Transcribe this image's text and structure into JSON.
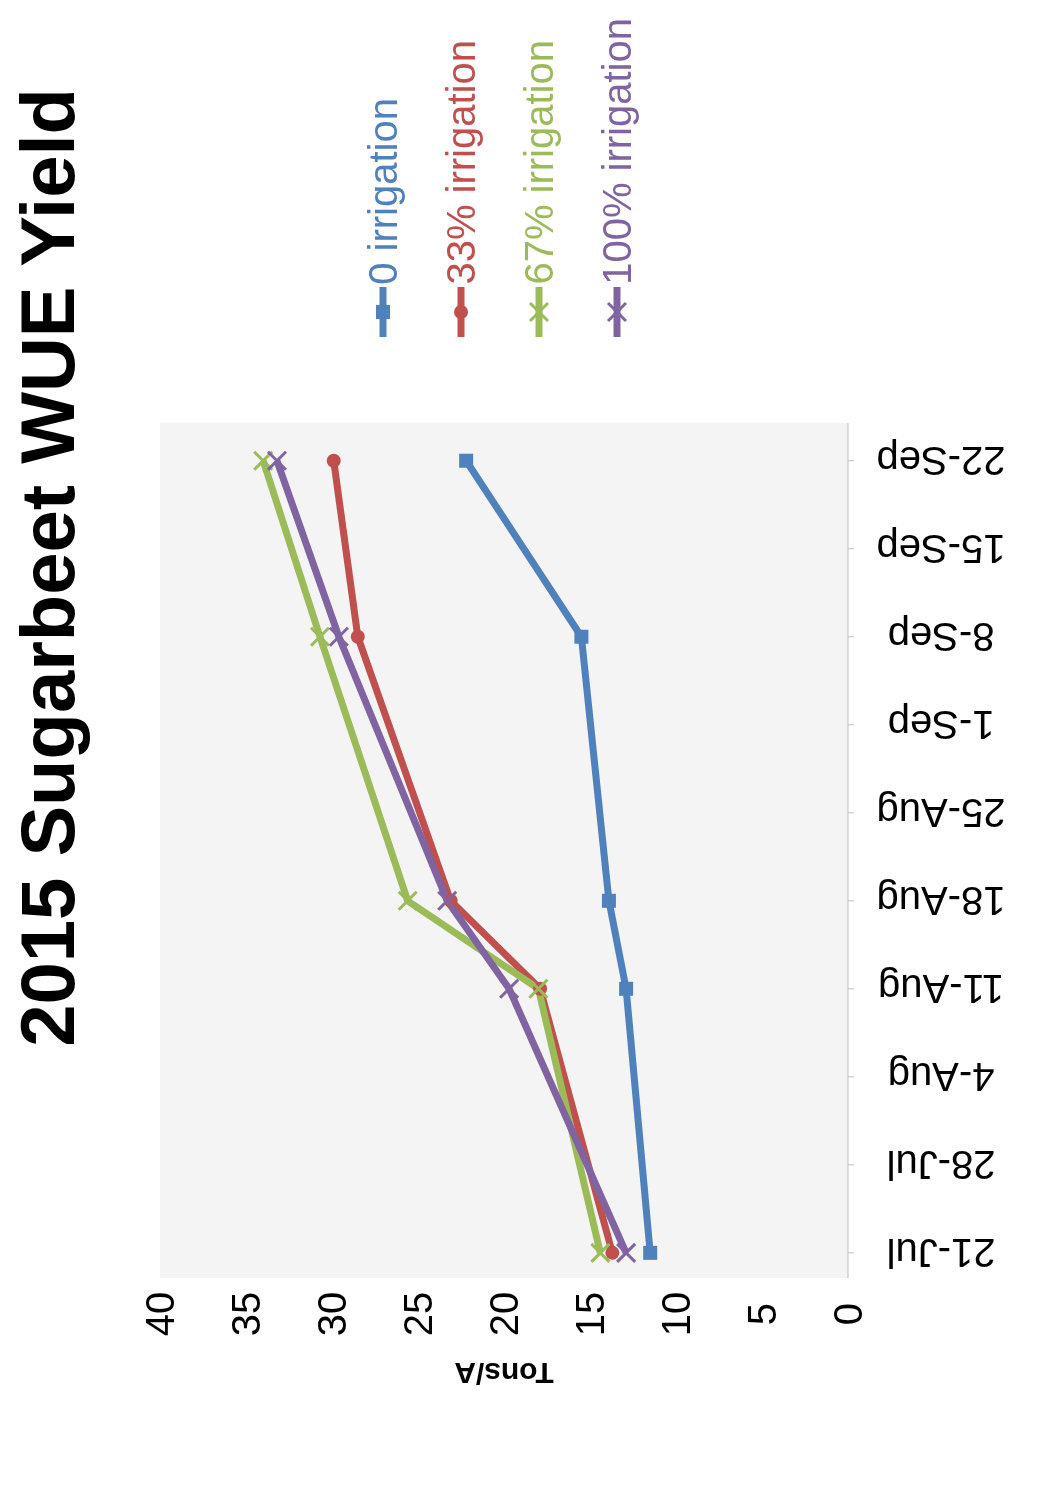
{
  "chart_data": {
    "type": "line",
    "orientation": "horizontal",
    "title": "2015 Sugarbeet WUE Yield",
    "xlabel": "Tons/A",
    "x": [
      "2015-07-21",
      "2015-08-11",
      "2015-08-18",
      "2015-09-08",
      "2015-09-22"
    ],
    "ylim": [
      "2015-07-19",
      "2015-09-25"
    ],
    "yticks": [
      {
        "value": "2015-07-21",
        "label": "21-Jul"
      },
      {
        "value": "2015-07-28",
        "label": "28-Jul"
      },
      {
        "value": "2015-08-04",
        "label": "4-Aug"
      },
      {
        "value": "2015-08-11",
        "label": "11-Aug"
      },
      {
        "value": "2015-08-18",
        "label": "18-Aug"
      },
      {
        "value": "2015-08-25",
        "label": "25-Aug"
      },
      {
        "value": "2015-09-01",
        "label": "1-Sep"
      },
      {
        "value": "2015-09-08",
        "label": "8-Sep"
      },
      {
        "value": "2015-09-15",
        "label": "15-Sep"
      },
      {
        "value": "2015-09-22",
        "label": "22-Sep"
      }
    ],
    "xlim": [
      40,
      0
    ],
    "xticks": [
      0,
      5,
      10,
      15,
      20,
      25,
      30,
      35,
      40
    ],
    "grid": false,
    "legend": "top",
    "series": [
      {
        "name": "0 irrigation",
        "color": "#4f81bd",
        "marker": "square",
        "values": [
          11.5,
          12.9,
          13.9,
          15.5,
          22.2
        ]
      },
      {
        "name": "33% irrigation",
        "color": "#c0504d",
        "marker": "circle",
        "values": [
          13.7,
          17.9,
          23.1,
          28.5,
          29.9
        ]
      },
      {
        "name": "67% irrigation",
        "color": "#9bbb59",
        "marker": "cross",
        "values": [
          14.4,
          18.0,
          25.6,
          30.7,
          34.0
        ]
      },
      {
        "name": "100% irrigation",
        "color": "#8064a2",
        "marker": "cross",
        "values": [
          12.9,
          19.7,
          23.3,
          29.6,
          33.2
        ]
      }
    ]
  }
}
